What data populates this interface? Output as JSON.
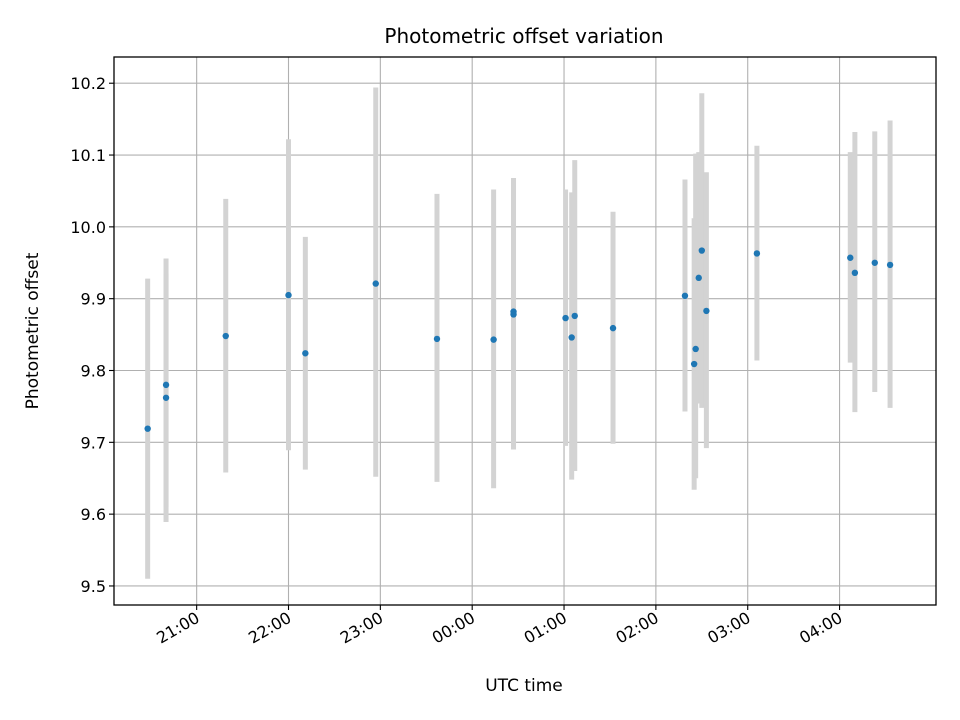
{
  "chart_data": {
    "type": "scatter",
    "title": "Photometric offset variation",
    "xlabel": "UTC time",
    "ylabel": "Photometric offset",
    "grid": true,
    "xlim_hours": [
      20.1,
      29.05
    ],
    "ylim": [
      9.4735,
      10.2365
    ],
    "x_ticks": [
      {
        "hour": 21,
        "label": "21:00"
      },
      {
        "hour": 22,
        "label": "22:00"
      },
      {
        "hour": 23,
        "label": "23:00"
      },
      {
        "hour": 24,
        "label": "00:00"
      },
      {
        "hour": 25,
        "label": "01:00"
      },
      {
        "hour": 26,
        "label": "02:00"
      },
      {
        "hour": 27,
        "label": "03:00"
      },
      {
        "hour": 28,
        "label": "04:00"
      }
    ],
    "y_ticks": [
      {
        "value": 9.5,
        "label": "9.5"
      },
      {
        "value": 9.6,
        "label": "9.6"
      },
      {
        "value": 9.7,
        "label": "9.7"
      },
      {
        "value": 9.8,
        "label": "9.8"
      },
      {
        "value": 9.9,
        "label": "9.9"
      },
      {
        "value": 10.0,
        "label": "10.0"
      },
      {
        "value": 10.1,
        "label": "10.1"
      },
      {
        "value": 10.2,
        "label": "10.2"
      }
    ],
    "colors": {
      "point": "#1f77b4",
      "errorbar": "#d3d3d3",
      "grid": "#b0b0b0"
    },
    "points": [
      {
        "x": "20:28",
        "y": 9.719,
        "lo": 9.51,
        "hi": 9.928
      },
      {
        "x": "20:40",
        "y": 9.78,
        "lo": 9.61,
        "hi": 9.956
      },
      {
        "x": "20:40",
        "y": 9.762,
        "lo": 9.589,
        "hi": 9.935
      },
      {
        "x": "21:19",
        "y": 9.848,
        "lo": 9.658,
        "hi": 10.039
      },
      {
        "x": "22:00",
        "y": 9.905,
        "lo": 9.689,
        "hi": 10.122
      },
      {
        "x": "22:11",
        "y": 9.824,
        "lo": 9.662,
        "hi": 9.986
      },
      {
        "x": "22:57",
        "y": 9.921,
        "lo": 9.652,
        "hi": 10.194
      },
      {
        "x": "23:37",
        "y": 9.844,
        "lo": 9.645,
        "hi": 10.046
      },
      {
        "x": "00:14",
        "y": 9.843,
        "lo": 9.636,
        "hi": 10.052
      },
      {
        "x": "00:27",
        "y": 9.882,
        "lo": 9.69,
        "hi": 10.068
      },
      {
        "x": "00:27",
        "y": 9.878,
        "lo": 9.69,
        "hi": 10.066
      },
      {
        "x": "01:01",
        "y": 9.873,
        "lo": 9.695,
        "hi": 10.052
      },
      {
        "x": "01:05",
        "y": 9.846,
        "lo": 9.648,
        "hi": 10.048
      },
      {
        "x": "01:07",
        "y": 9.876,
        "lo": 9.66,
        "hi": 10.093
      },
      {
        "x": "01:32",
        "y": 9.859,
        "lo": 9.698,
        "hi": 10.021
      },
      {
        "x": "02:19",
        "y": 9.904,
        "lo": 9.743,
        "hi": 10.066
      },
      {
        "x": "02:25",
        "y": 9.809,
        "lo": 9.634,
        "hi": 10.012
      },
      {
        "x": "02:26",
        "y": 9.83,
        "lo": 9.65,
        "hi": 10.102
      },
      {
        "x": "02:28",
        "y": 9.929,
        "lo": 9.754,
        "hi": 10.104
      },
      {
        "x": "02:30",
        "y": 9.967,
        "lo": 9.748,
        "hi": 10.186
      },
      {
        "x": "02:33",
        "y": 9.883,
        "lo": 9.692,
        "hi": 10.076
      },
      {
        "x": "03:06",
        "y": 9.963,
        "lo": 9.814,
        "hi": 10.113
      },
      {
        "x": "04:07",
        "y": 9.957,
        "lo": 9.811,
        "hi": 10.104
      },
      {
        "x": "04:10",
        "y": 9.936,
        "lo": 9.742,
        "hi": 10.132
      },
      {
        "x": "04:23",
        "y": 9.95,
        "lo": 9.77,
        "hi": 10.133
      },
      {
        "x": "04:33",
        "y": 9.947,
        "lo": 9.748,
        "hi": 10.148
      }
    ]
  }
}
